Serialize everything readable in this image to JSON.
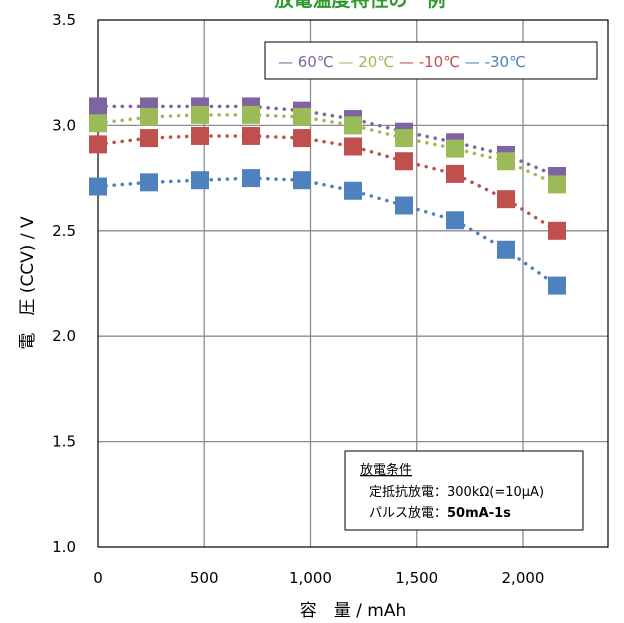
{
  "chart_data": {
    "type": "scatter",
    "title": "放電温度特性の一例",
    "xlabel": "容　量 / mAh",
    "ylabel": "電　圧 (CCV) / V",
    "xlim": [
      0,
      2400
    ],
    "ylim": [
      1.0,
      3.5
    ],
    "xticks": [
      0,
      500,
      1000,
      1500,
      2000
    ],
    "xtick_labels": [
      "0",
      "500",
      "1,000",
      "1,500",
      "2,000"
    ],
    "yticks": [
      1.0,
      1.5,
      2.0,
      2.5,
      3.0,
      3.5
    ],
    "ytick_labels": [
      "1.0",
      "1.5",
      "2.0",
      "2.5",
      "3.0",
      "3.5"
    ],
    "grid": true,
    "legend_position": "top-right",
    "x": [
      0,
      240,
      480,
      720,
      960,
      1200,
      1440,
      1680,
      1920,
      2160
    ],
    "series": [
      {
        "name": "60℃",
        "color": "#8064a2",
        "values": [
          3.09,
          3.09,
          3.09,
          3.09,
          3.07,
          3.03,
          2.97,
          2.92,
          2.86,
          2.76
        ]
      },
      {
        "name": "20℃",
        "color": "#9bbb59",
        "values": [
          3.01,
          3.04,
          3.05,
          3.05,
          3.04,
          3.0,
          2.94,
          2.89,
          2.83,
          2.72
        ]
      },
      {
        "name": "-10℃",
        "color": "#c0504d",
        "values": [
          2.91,
          2.94,
          2.95,
          2.95,
          2.94,
          2.9,
          2.83,
          2.77,
          2.65,
          2.5
        ]
      },
      {
        "name": "-30℃",
        "color": "#4f81bd",
        "values": [
          2.71,
          2.73,
          2.74,
          2.75,
          2.74,
          2.69,
          2.62,
          2.55,
          2.41,
          2.24
        ]
      }
    ],
    "legend_dash": "—",
    "annotation": {
      "heading": "放電条件",
      "line1": "定抵抗放電：300kΩ(=10μA)",
      "line2_label": "パルス放電：",
      "line2_value": "50mA-1s"
    }
  }
}
